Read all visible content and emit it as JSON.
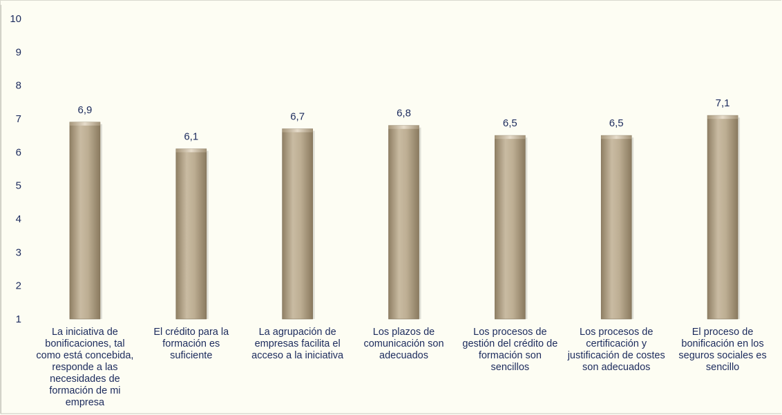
{
  "chart_data": {
    "type": "bar",
    "categories": [
      "La iniciativa de bonificaciones, tal como está concebida, responde a las necesidades de formación de mi empresa",
      "El crédito para la formación es suficiente",
      "La agrupación de empresas facilita el acceso a la iniciativa",
      "Los plazos de comunicación son adecuados",
      "Los procesos de gestión del crédito de formación son sencillos",
      "Los procesos de certificación y justificación de costes son adecuados",
      "El proceso de bonificación en los seguros sociales es sencillo"
    ],
    "category_lines": [
      [
        "La iniciativa de",
        "bonificaciones, tal",
        "como está concebida,",
        "responde a las",
        "necesidades de",
        "formación de mi",
        "empresa"
      ],
      [
        "El crédito para la",
        "formación es",
        "suficiente"
      ],
      [
        "La agrupación de",
        "empresas facilita el",
        "acceso a la iniciativa"
      ],
      [
        "Los plazos de",
        "comunicación son",
        "adecuados"
      ],
      [
        "Los procesos de",
        "gestión del crédito de",
        "formación son",
        "sencillos"
      ],
      [
        "Los procesos de",
        "certificación y",
        "justificación de costes",
        "son adecuados"
      ],
      [
        "El proceso de",
        "bonificación en los",
        "seguros sociales es",
        "sencillo"
      ]
    ],
    "values": [
      6.9,
      6.1,
      6.7,
      6.8,
      6.5,
      6.5,
      7.1
    ],
    "value_labels": [
      "6,9",
      "6,1",
      "6,7",
      "6,8",
      "6,5",
      "6,5",
      "7,1"
    ],
    "ylim": [
      1,
      10
    ],
    "yticks": [
      1,
      2,
      3,
      4,
      5,
      6,
      7,
      8,
      9,
      10
    ],
    "title": "",
    "xlabel": "",
    "ylabel": "",
    "grid": false,
    "legend": "none",
    "bar_color": "#b8a88e",
    "text_color": "#1b2a5c"
  }
}
